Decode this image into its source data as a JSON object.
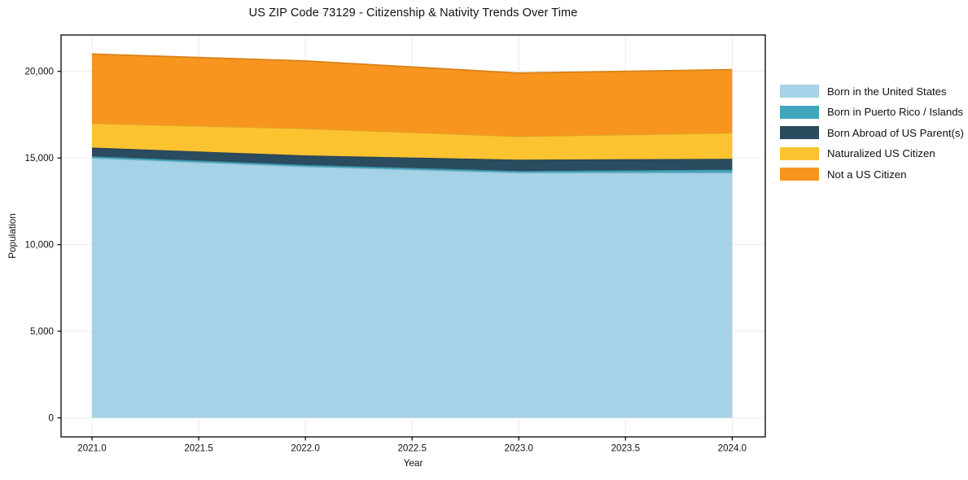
{
  "title": "US ZIP Code 73129 - Citizenship & Nativity Trends Over Time",
  "chart_data": {
    "type": "area",
    "stacked": true,
    "title": "US ZIP Code 73129 - Citizenship & Nativity Trends Over Time",
    "xlabel": "Year",
    "ylabel": "Population",
    "x": [
      2021,
      2022,
      2023,
      2024
    ],
    "series": [
      {
        "name": "Born in the United States",
        "color": "#a6d2e7",
        "values": [
          15000,
          14500,
          14150,
          14150
        ]
      },
      {
        "name": "Born in Puerto Rico / Islands",
        "color": "#41a6bd",
        "values": [
          100,
          100,
          100,
          175
        ]
      },
      {
        "name": "Born Abroad of US Parent(s)",
        "color": "#2b4b5f",
        "values": [
          500,
          550,
          650,
          625
        ]
      },
      {
        "name": "Naturalized US Citizen",
        "color": "#fcc331",
        "values": [
          1400,
          1550,
          1350,
          1500
        ]
      },
      {
        "name": "Not a US Citizen",
        "color": "#f8951e",
        "values": [
          4000,
          3900,
          3650,
          3650
        ]
      }
    ],
    "x_ticks": [
      2021.0,
      2021.5,
      2022.0,
      2022.5,
      2023.0,
      2023.5,
      2024.0
    ],
    "x_tick_labels": [
      "2021.0",
      "2021.5",
      "2022.0",
      "2022.5",
      "2023.0",
      "2023.5",
      "2024.0"
    ],
    "y_ticks": [
      0,
      5000,
      10000,
      15000,
      20000
    ],
    "y_tick_labels": [
      "0",
      "5,000",
      "10,000",
      "15,000",
      "20,000"
    ],
    "xlim": [
      2020.855,
      2024.155
    ],
    "ylim": [
      -1100,
      22100
    ],
    "grid": true,
    "grid_color": "#ebebeb",
    "spine_color": "#000000",
    "legend_position": "outside-right"
  }
}
